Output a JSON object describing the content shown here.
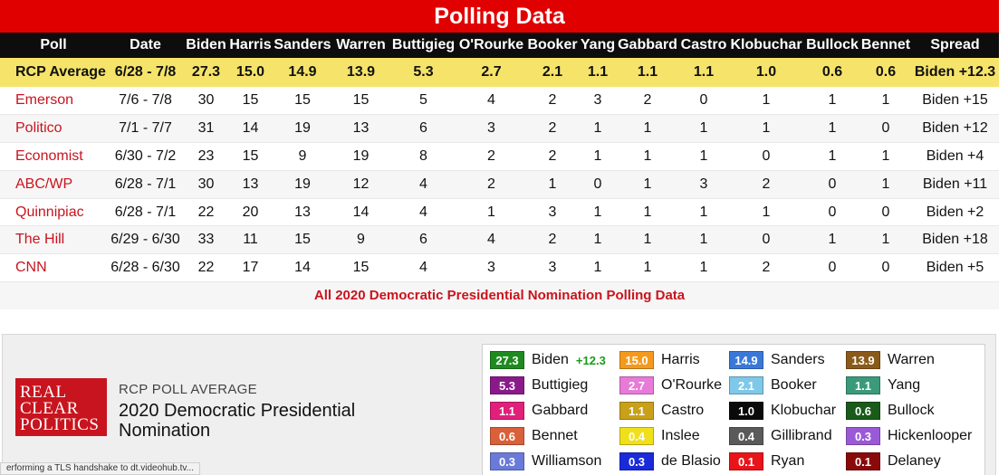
{
  "title": "Polling Data",
  "headers": [
    "Poll",
    "Date",
    "Biden",
    "Harris",
    "Sanders",
    "Warren",
    "Buttigieg",
    "O'Rourke",
    "Booker",
    "Yang",
    "Gabbard",
    "Castro",
    "Klobuchar",
    "Bullock",
    "Bennet",
    "Spread"
  ],
  "rcp": [
    "RCP Average",
    "6/28 - 7/8",
    "27.3",
    "15.0",
    "14.9",
    "13.9",
    "5.3",
    "2.7",
    "2.1",
    "1.1",
    "1.1",
    "1.1",
    "1.0",
    "0.6",
    "0.6",
    "Biden +12.3"
  ],
  "rows": [
    [
      "Emerson",
      "7/6 - 7/8",
      "30",
      "15",
      "15",
      "15",
      "5",
      "4",
      "2",
      "3",
      "2",
      "0",
      "1",
      "1",
      "1",
      "Biden +15"
    ],
    [
      "Politico",
      "7/1 - 7/7",
      "31",
      "14",
      "19",
      "13",
      "6",
      "3",
      "2",
      "1",
      "1",
      "1",
      "1",
      "1",
      "0",
      "Biden +12"
    ],
    [
      "Economist",
      "6/30 - 7/2",
      "23",
      "15",
      "9",
      "19",
      "8",
      "2",
      "2",
      "1",
      "1",
      "1",
      "0",
      "1",
      "1",
      "Biden +4"
    ],
    [
      "ABC/WP",
      "6/28 - 7/1",
      "30",
      "13",
      "19",
      "12",
      "4",
      "2",
      "1",
      "0",
      "1",
      "3",
      "2",
      "0",
      "1",
      "Biden +11"
    ],
    [
      "Quinnipiac",
      "6/28 - 7/1",
      "22",
      "20",
      "13",
      "14",
      "4",
      "1",
      "3",
      "1",
      "1",
      "1",
      "1",
      "0",
      "0",
      "Biden +2"
    ],
    [
      "The Hill",
      "6/29 - 6/30",
      "33",
      "11",
      "15",
      "9",
      "6",
      "4",
      "2",
      "1",
      "1",
      "1",
      "0",
      "1",
      "1",
      "Biden +18"
    ],
    [
      "CNN",
      "6/28 - 6/30",
      "22",
      "17",
      "14",
      "15",
      "4",
      "3",
      "3",
      "1",
      "1",
      "1",
      "2",
      "0",
      "0",
      "Biden +5"
    ]
  ],
  "footer_link": "All 2020 Democratic Presidential Nomination Polling Data",
  "logo_lines": [
    "REAL",
    "CLEAR",
    "POLITICS"
  ],
  "avg_label": "RCP POLL AVERAGE",
  "avg_title": "2020 Democratic Presidential Nomination",
  "legend": [
    {
      "value": "27.3",
      "name": "Biden",
      "spread": "+12.3",
      "color": "#1f8a1f"
    },
    {
      "value": "15.0",
      "name": "Harris",
      "color": "#f39a1e"
    },
    {
      "value": "14.9",
      "name": "Sanders",
      "color": "#3a78d8"
    },
    {
      "value": "13.9",
      "name": "Warren",
      "color": "#8a5a1a"
    },
    {
      "value": "5.3",
      "name": "Buttigieg",
      "color": "#8a1a8a"
    },
    {
      "value": "2.7",
      "name": "O'Rourke",
      "color": "#e87ad8"
    },
    {
      "value": "2.1",
      "name": "Booker",
      "color": "#7ec8e8"
    },
    {
      "value": "1.1",
      "name": "Yang",
      "color": "#3a9a7a"
    },
    {
      "value": "1.1",
      "name": "Gabbard",
      "color": "#e0207a"
    },
    {
      "value": "1.1",
      "name": "Castro",
      "color": "#c8a01a"
    },
    {
      "value": "1.0",
      "name": "Klobuchar",
      "color": "#0a0a0a"
    },
    {
      "value": "0.6",
      "name": "Bullock",
      "color": "#1a5a1a"
    },
    {
      "value": "0.6",
      "name": "Bennet",
      "color": "#d8603a"
    },
    {
      "value": "0.4",
      "name": "Inslee",
      "color": "#f0e01a"
    },
    {
      "value": "0.4",
      "name": "Gillibrand",
      "color": "#5a5a5a"
    },
    {
      "value": "0.3",
      "name": "Hickenlooper",
      "color": "#9a5ad8"
    },
    {
      "value": "0.3",
      "name": "Williamson",
      "color": "#6a7ad8"
    },
    {
      "value": "0.3",
      "name": "de Blasio",
      "color": "#1a2ad8"
    },
    {
      "value": "0.1",
      "name": "Ryan",
      "color": "#e8141a"
    },
    {
      "value": "0.1",
      "name": "Delaney",
      "color": "#8a0a0a"
    }
  ],
  "status_text": "erforming a TLS handshake to dt.videohub.tv..."
}
